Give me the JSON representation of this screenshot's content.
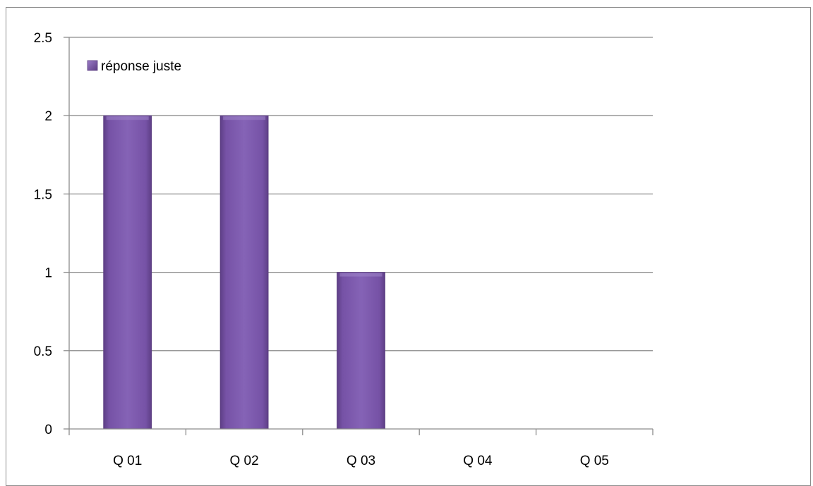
{
  "chart_data": {
    "type": "bar",
    "title": "",
    "xlabel": "",
    "ylabel": "",
    "categories": [
      "Q 01",
      "Q 02",
      "Q 03",
      "Q 04",
      "Q 05"
    ],
    "series": [
      {
        "name": "réponse juste",
        "values": [
          2,
          2,
          1,
          0,
          0
        ],
        "color": "#7b5aa6"
      }
    ],
    "ylim": [
      0,
      2.5
    ],
    "yticks": [
      "0",
      "0.5",
      "1",
      "1.5",
      "2",
      "2.5"
    ],
    "grid": true,
    "legend_position": "top-left"
  }
}
